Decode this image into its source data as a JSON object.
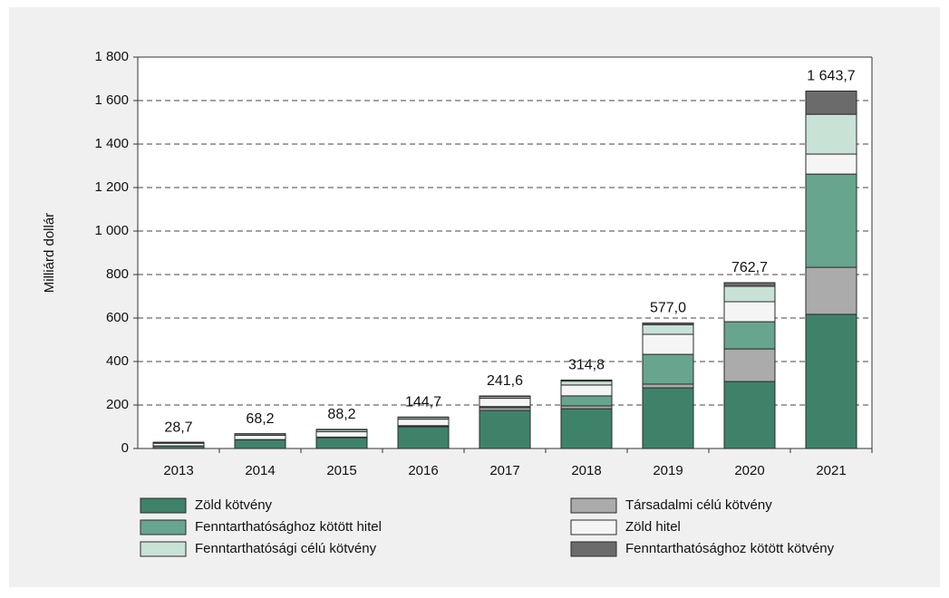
{
  "chart_data": {
    "type": "stacked-bar",
    "y_label": "Milliárd dollár",
    "categories": [
      "2013",
      "2014",
      "2015",
      "2016",
      "2017",
      "2018",
      "2019",
      "2020",
      "2021"
    ],
    "series": [
      {
        "name": "Zöld kötvény",
        "color": "#3f826a",
        "values": [
          12,
          40,
          50,
          100,
          175,
          183,
          279,
          308,
          617
        ]
      },
      {
        "name": "Társadalmi célú kötvény",
        "color": "#ababab",
        "values": [
          0.1,
          0.5,
          0.5,
          2,
          13,
          13,
          17,
          150,
          216
        ]
      },
      {
        "name": "Fenntarthatósághoz kötött hitel",
        "color": "#68a58e",
        "values": [
          0.1,
          0.5,
          2,
          3,
          5,
          46,
          137,
          125,
          429
        ]
      },
      {
        "name": "Zöld hitel",
        "color": "#f5f5f5",
        "values": [
          12,
          20,
          25,
          30,
          38,
          50,
          92,
          92,
          92
        ]
      },
      {
        "name": "Fenntarthatósági célú kötvény",
        "color": "#c8e2d6",
        "values": [
          4,
          6,
          9,
          8,
          8,
          18,
          44,
          71,
          183
        ]
      },
      {
        "name": "Fenntarthatósághoz kötött kötvény",
        "color": "#6b6b6b",
        "values": [
          0.5,
          1.2,
          1.7,
          1.7,
          2.6,
          4.8,
          8,
          16.7,
          106.7
        ]
      }
    ],
    "totals": {
      "values": [
        28.7,
        68.2,
        88.2,
        144.7,
        241.6,
        314.8,
        577.0,
        762.7,
        1643.7
      ],
      "value_labels": [
        "28,7",
        "68,2",
        "88,2",
        "144,7",
        "241,6",
        "314,8",
        "577,0",
        "762,7",
        "1 643,7"
      ]
    },
    "ylim": [
      0,
      1800
    ],
    "yticks": [
      0,
      200,
      400,
      600,
      800,
      {
        "value": 1000,
        "label": "1 000"
      },
      {
        "value": 1200,
        "label": "1 200"
      },
      {
        "value": 1400,
        "label": "1 400"
      },
      {
        "value": 1600,
        "label": "1 600"
      },
      {
        "value": 1800,
        "label": "1 800"
      }
    ],
    "grid": true
  }
}
